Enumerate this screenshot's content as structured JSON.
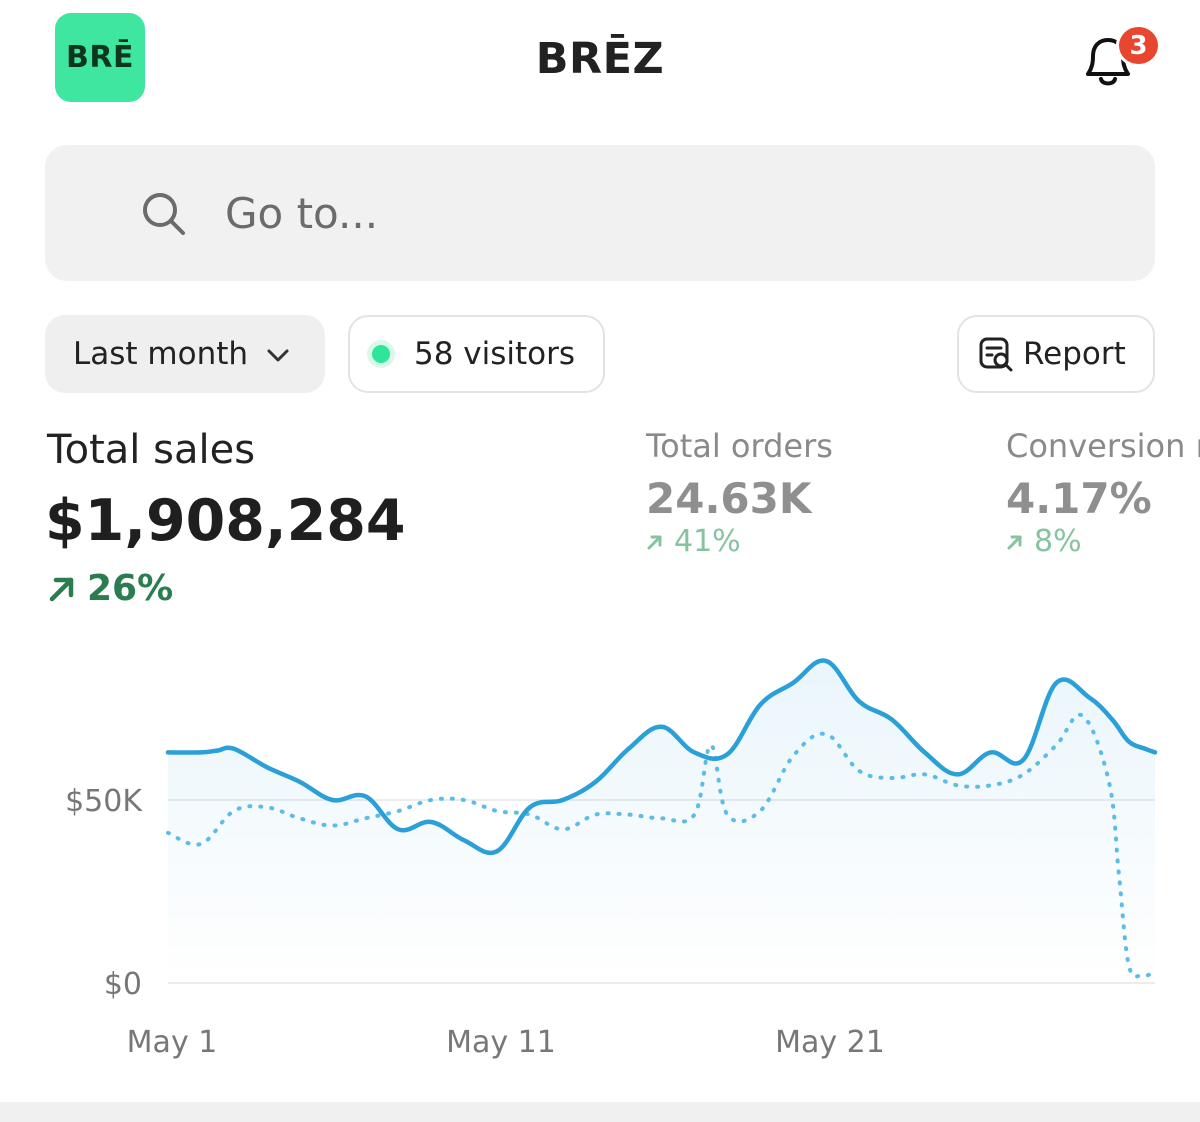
{
  "header": {
    "logo_text": "BRĒ",
    "title": "BRĒZ",
    "notification_count": "3"
  },
  "search": {
    "placeholder": "Go to..."
  },
  "filters": {
    "period_label": "Last month",
    "visitors_label": "58 visitors",
    "report_label": "Report"
  },
  "metrics": {
    "total_sales": {
      "label": "Total sales",
      "value": "$1,908,284",
      "change": "26%"
    },
    "total_orders": {
      "label": "Total orders",
      "value": "24.63K",
      "change": "41%"
    },
    "conversion": {
      "label": "Conversion r",
      "value": "4.17%",
      "change": "8%"
    }
  },
  "colors": {
    "brand": "#3ee6a0",
    "badge": "#e8462f",
    "line": "#2a9fd8",
    "positive": "#2a7d4f"
  },
  "chart_data": {
    "type": "line",
    "x_tick_labels": [
      "May 1",
      "May 11",
      "May 21"
    ],
    "y_tick_labels": [
      "$0",
      "$50K"
    ],
    "ylim": [
      0,
      100000
    ],
    "x_range": [
      1,
      31
    ],
    "grid": true,
    "series": [
      {
        "style": "solid",
        "x": [
          1,
          2,
          2.5,
          3,
          4,
          5,
          6,
          7,
          8,
          9,
          10,
          11,
          12,
          13,
          14,
          15,
          16,
          17,
          18,
          19,
          20,
          21,
          22,
          23,
          24,
          25,
          26,
          27,
          28,
          29,
          29.7,
          30.2,
          30.7,
          31
        ],
        "y": [
          63000,
          63000,
          63500,
          64000,
          59000,
          55000,
          50000,
          51000,
          42000,
          44000,
          39000,
          36000,
          48000,
          50000,
          55000,
          64000,
          70000,
          63000,
          62500,
          76000,
          82000,
          88000,
          77000,
          72000,
          63000,
          57000,
          63000,
          61000,
          82000,
          78000,
          72000,
          66000,
          64000,
          63000
        ]
      },
      {
        "style": "dotted",
        "x": [
          1,
          2,
          3,
          4,
          5,
          6,
          7,
          8,
          9,
          10,
          11,
          12,
          13,
          14,
          15,
          16,
          17,
          17.5,
          18,
          19,
          20,
          21,
          22,
          23,
          24,
          25,
          26,
          27,
          28,
          28.8,
          29.6,
          29.9,
          30.2,
          30.6,
          31
        ],
        "y": [
          41000,
          38000,
          47000,
          48000,
          45000,
          43000,
          45000,
          47000,
          50000,
          50000,
          47000,
          46000,
          42000,
          46000,
          46000,
          45000,
          46000,
          65000,
          46000,
          47000,
          62000,
          68000,
          58000,
          56000,
          57000,
          54000,
          54000,
          57000,
          65000,
          73000,
          55000,
          30000,
          5000,
          2000,
          3000
        ]
      }
    ]
  }
}
